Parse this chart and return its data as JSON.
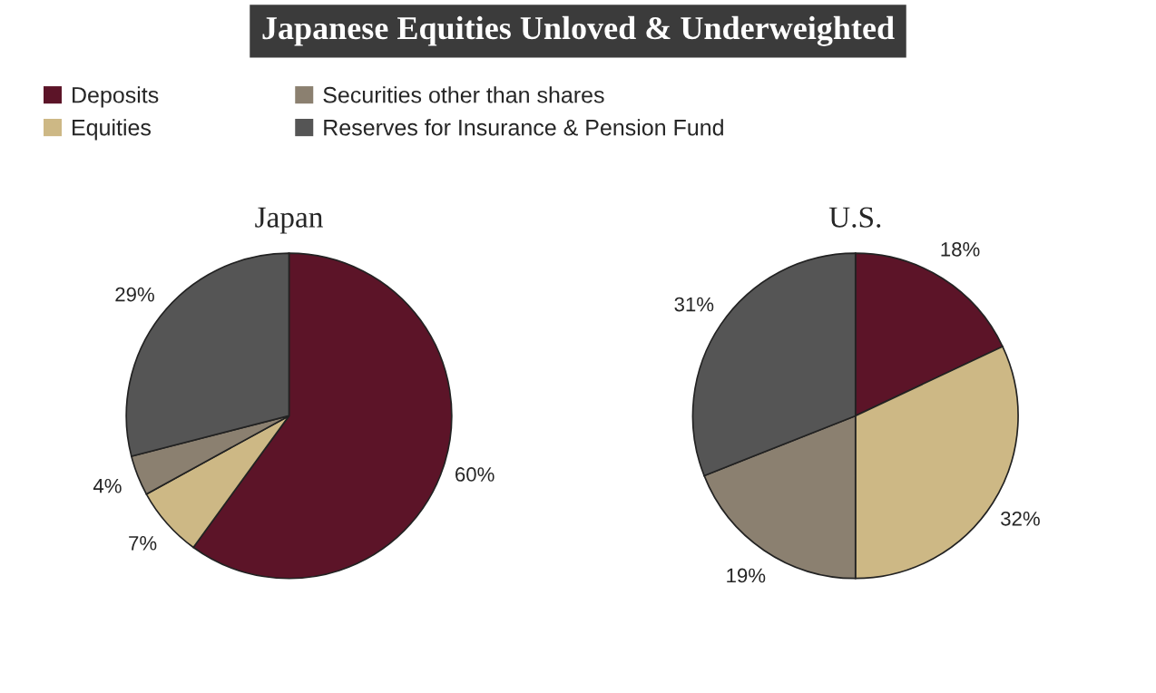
{
  "chart_data": [
    {
      "type": "pie",
      "title": "Japan",
      "annotations": [
        "Japanese Equities Unloved & Underweighted"
      ],
      "legend": "top",
      "categories": [
        "Deposits",
        "Equities",
        "Securities other than shares",
        "Reserves for Insurance & Pension Fund"
      ],
      "values": [
        60,
        7,
        4,
        29
      ],
      "value_labels": [
        "60%",
        "7%",
        "4%",
        "29%"
      ],
      "colors": [
        "#5c1428",
        "#cdb885",
        "#8b8070",
        "#555555"
      ]
    },
    {
      "type": "pie",
      "title": "U.S.",
      "categories": [
        null,
        null,
        null,
        null
      ],
      "values": [
        18,
        32,
        19,
        31
      ],
      "value_labels": [
        "18%",
        "32%",
        "19%",
        "31%"
      ],
      "colors": [
        "#5c1428",
        "#cdb885",
        "#8b8070",
        "#555555"
      ]
    }
  ]
}
